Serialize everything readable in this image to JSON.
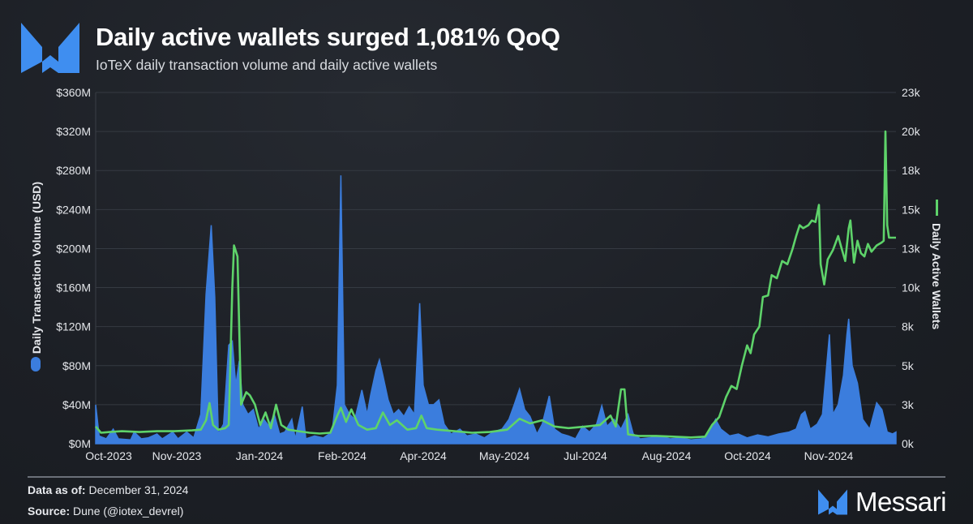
{
  "header": {
    "title": "Daily active wallets surged 1,081% QoQ",
    "subtitle": "IoTeX daily transaction volume and daily active wallets"
  },
  "footer": {
    "data_as_of_label": "Data as of:",
    "data_as_of_value": "December 31, 2024",
    "source_label": "Source:",
    "source_value": "Dune (@iotex_devrel)",
    "brand": "Messari"
  },
  "colors": {
    "volume": "#3b7ddd",
    "wallets": "#5ed36a",
    "accent": "#3f8ef0"
  },
  "chart_data": {
    "type": "area+line",
    "title": "Daily active wallets surged 1,081% QoQ",
    "x_unit": "days since Oct 1, 2023",
    "x_range": [
      0,
      457
    ],
    "x_tick_labels": [
      "Oct-2023",
      "Nov-2023",
      "Jan-2024",
      "Feb-2024",
      "Apr-2024",
      "May-2024",
      "Jul-2024",
      "Aug-2024",
      "Oct-2024",
      "Nov-2024"
    ],
    "y_left": {
      "label": "Daily Transaction Volume (USD)",
      "ylim": [
        0,
        360
      ],
      "unit": "USD millions",
      "tick_labels": [
        "$0M",
        "$40M",
        "$80M",
        "$120M",
        "$160M",
        "$200M",
        "$240M",
        "$280M",
        "$320M",
        "$360M"
      ]
    },
    "y_right": {
      "label": "Daily Active Wallets",
      "ylim": [
        0,
        22500
      ],
      "tick_labels": [
        "0k",
        "3k",
        "5k",
        "8k",
        "10k",
        "13k",
        "15k",
        "18k",
        "20k",
        "23k"
      ]
    },
    "grid": true,
    "series": [
      {
        "name": "Daily Transaction Volume (USD)",
        "type": "area",
        "axis": "left",
        "points": [
          [
            0,
            40
          ],
          [
            2,
            8
          ],
          [
            6,
            5
          ],
          [
            10,
            15
          ],
          [
            13,
            5
          ],
          [
            20,
            4
          ],
          [
            22,
            12
          ],
          [
            26,
            5
          ],
          [
            30,
            6
          ],
          [
            35,
            10
          ],
          [
            38,
            5
          ],
          [
            44,
            12
          ],
          [
            47,
            5
          ],
          [
            52,
            12
          ],
          [
            56,
            6
          ],
          [
            60,
            30
          ],
          [
            63,
            153
          ],
          [
            66,
            224
          ],
          [
            68,
            150
          ],
          [
            70,
            10
          ],
          [
            73,
            20
          ],
          [
            76,
            101
          ],
          [
            78,
            105
          ],
          [
            80,
            60
          ],
          [
            82,
            85
          ],
          [
            84,
            40
          ],
          [
            87,
            30
          ],
          [
            90,
            35
          ],
          [
            93,
            15
          ],
          [
            96,
            25
          ],
          [
            99,
            18
          ],
          [
            102,
            30
          ],
          [
            105,
            10
          ],
          [
            108,
            12
          ],
          [
            112,
            25
          ],
          [
            114,
            5
          ],
          [
            118,
            38
          ],
          [
            120,
            5
          ],
          [
            125,
            8
          ],
          [
            130,
            6
          ],
          [
            135,
            12
          ],
          [
            138,
            60
          ],
          [
            140,
            275
          ],
          [
            142,
            40
          ],
          [
            145,
            30
          ],
          [
            148,
            25
          ],
          [
            152,
            55
          ],
          [
            155,
            30
          ],
          [
            157,
            50
          ],
          [
            160,
            75
          ],
          [
            162,
            86
          ],
          [
            164,
            70
          ],
          [
            167,
            45
          ],
          [
            170,
            30
          ],
          [
            173,
            35
          ],
          [
            176,
            28
          ],
          [
            179,
            38
          ],
          [
            182,
            30
          ],
          [
            185,
            144
          ],
          [
            187,
            60
          ],
          [
            190,
            40
          ],
          [
            193,
            40
          ],
          [
            196,
            45
          ],
          [
            199,
            20
          ],
          [
            203,
            10
          ],
          [
            208,
            15
          ],
          [
            212,
            8
          ],
          [
            217,
            10
          ],
          [
            222,
            6
          ],
          [
            227,
            12
          ],
          [
            232,
            15
          ],
          [
            236,
            25
          ],
          [
            239,
            40
          ],
          [
            242,
            56
          ],
          [
            245,
            35
          ],
          [
            248,
            28
          ],
          [
            252,
            10
          ],
          [
            255,
            20
          ],
          [
            259,
            49
          ],
          [
            262,
            15
          ],
          [
            266,
            10
          ],
          [
            270,
            8
          ],
          [
            274,
            5
          ],
          [
            278,
            18
          ],
          [
            282,
            12
          ],
          [
            286,
            20
          ],
          [
            289,
            39
          ],
          [
            292,
            18
          ],
          [
            296,
            25
          ],
          [
            300,
            15
          ],
          [
            304,
            30
          ],
          [
            307,
            10
          ],
          [
            311,
            5
          ],
          [
            316,
            6
          ],
          [
            322,
            8
          ],
          [
            328,
            5
          ],
          [
            334,
            6
          ],
          [
            340,
            4
          ],
          [
            346,
            5
          ],
          [
            350,
            10
          ],
          [
            354,
            25
          ],
          [
            357,
            15
          ],
          [
            362,
            8
          ],
          [
            367,
            10
          ],
          [
            372,
            6
          ],
          [
            378,
            9
          ],
          [
            384,
            7
          ],
          [
            390,
            10
          ],
          [
            396,
            12
          ],
          [
            400,
            15
          ],
          [
            403,
            30
          ],
          [
            405,
            33
          ],
          [
            408,
            15
          ],
          [
            412,
            20
          ],
          [
            415,
            30
          ],
          [
            419,
            112
          ],
          [
            421,
            30
          ],
          [
            424,
            40
          ],
          [
            427,
            70
          ],
          [
            429,
            112
          ],
          [
            430,
            128
          ],
          [
            432,
            80
          ],
          [
            435,
            62
          ],
          [
            438,
            25
          ],
          [
            442,
            15
          ],
          [
            446,
            42
          ],
          [
            449,
            35
          ],
          [
            452,
            12
          ],
          [
            455,
            10
          ],
          [
            457,
            12
          ]
        ]
      },
      {
        "name": "Daily Active Wallets",
        "type": "line",
        "axis": "right",
        "points": [
          [
            0,
            1100
          ],
          [
            3,
            700
          ],
          [
            8,
            750
          ],
          [
            15,
            800
          ],
          [
            25,
            750
          ],
          [
            35,
            800
          ],
          [
            45,
            800
          ],
          [
            55,
            850
          ],
          [
            60,
            900
          ],
          [
            63,
            1500
          ],
          [
            65,
            2600
          ],
          [
            67,
            1200
          ],
          [
            70,
            900
          ],
          [
            74,
            1000
          ],
          [
            76,
            1200
          ],
          [
            78,
            10000
          ],
          [
            79,
            12700
          ],
          [
            81,
            12000
          ],
          [
            83,
            2500
          ],
          [
            86,
            3300
          ],
          [
            88,
            3100
          ],
          [
            91,
            2500
          ],
          [
            94,
            1200
          ],
          [
            97,
            2000
          ],
          [
            100,
            1000
          ],
          [
            103,
            2500
          ],
          [
            106,
            1200
          ],
          [
            110,
            900
          ],
          [
            116,
            800
          ],
          [
            122,
            700
          ],
          [
            128,
            650
          ],
          [
            134,
            700
          ],
          [
            138,
            1800
          ],
          [
            140,
            2300
          ],
          [
            143,
            1400
          ],
          [
            146,
            2200
          ],
          [
            150,
            1200
          ],
          [
            155,
            900
          ],
          [
            160,
            1000
          ],
          [
            164,
            2000
          ],
          [
            168,
            1200
          ],
          [
            172,
            1500
          ],
          [
            178,
            900
          ],
          [
            183,
            1000
          ],
          [
            186,
            1800
          ],
          [
            189,
            1000
          ],
          [
            195,
            900
          ],
          [
            205,
            800
          ],
          [
            215,
            700
          ],
          [
            225,
            750
          ],
          [
            235,
            900
          ],
          [
            242,
            1600
          ],
          [
            248,
            1300
          ],
          [
            255,
            1500
          ],
          [
            262,
            1100
          ],
          [
            270,
            1000
          ],
          [
            280,
            1100
          ],
          [
            288,
            1200
          ],
          [
            294,
            1800
          ],
          [
            297,
            1100
          ],
          [
            300,
            3480
          ],
          [
            302,
            3480
          ],
          [
            304,
            600
          ],
          [
            310,
            500
          ],
          [
            320,
            500
          ],
          [
            330,
            450
          ],
          [
            340,
            400
          ],
          [
            348,
            450
          ],
          [
            352,
            1200
          ],
          [
            356,
            1700
          ],
          [
            360,
            3000
          ],
          [
            363,
            3700
          ],
          [
            366,
            3500
          ],
          [
            369,
            5000
          ],
          [
            372,
            6300
          ],
          [
            374,
            5800
          ],
          [
            376,
            7000
          ],
          [
            379,
            7500
          ],
          [
            381,
            9400
          ],
          [
            384,
            9500
          ],
          [
            386,
            10800
          ],
          [
            389,
            10600
          ],
          [
            392,
            11700
          ],
          [
            395,
            11500
          ],
          [
            398,
            12500
          ],
          [
            400,
            13300
          ],
          [
            402,
            14000
          ],
          [
            404,
            13800
          ],
          [
            407,
            14000
          ],
          [
            409,
            14300
          ],
          [
            411,
            14200
          ],
          [
            413,
            15300
          ],
          [
            414,
            11500
          ],
          [
            416,
            10200
          ],
          [
            418,
            11800
          ],
          [
            421,
            12400
          ],
          [
            424,
            13300
          ],
          [
            426,
            12500
          ],
          [
            428,
            11700
          ],
          [
            430,
            13800
          ],
          [
            431,
            14300
          ],
          [
            433,
            11600
          ],
          [
            435,
            13000
          ],
          [
            437,
            12200
          ],
          [
            439,
            12000
          ],
          [
            441,
            12800
          ],
          [
            443,
            12300
          ],
          [
            446,
            12700
          ],
          [
            449,
            12900
          ],
          [
            450,
            13000
          ],
          [
            451,
            20000
          ],
          [
            452,
            14000
          ],
          [
            453,
            13200
          ],
          [
            457,
            13200
          ]
        ]
      }
    ]
  }
}
